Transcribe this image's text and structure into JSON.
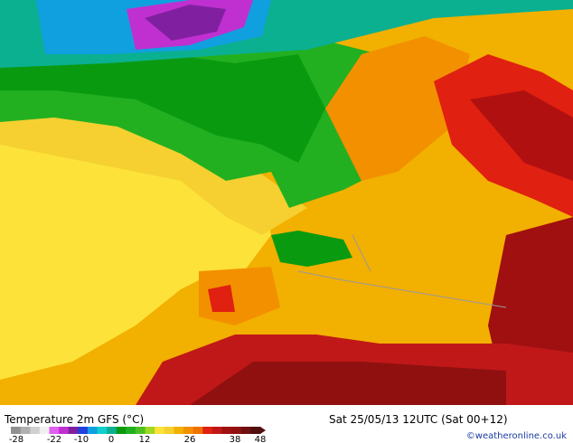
{
  "legend": {
    "title": "Temperature 2m GFS (°C)",
    "ticks": [
      -28,
      -22,
      -10,
      0,
      12,
      26,
      38,
      48
    ]
  },
  "run_info": "Sat 25/05/13 12UTC (Sat 00+12)",
  "credit": "©weatheronline.co.uk"
}
